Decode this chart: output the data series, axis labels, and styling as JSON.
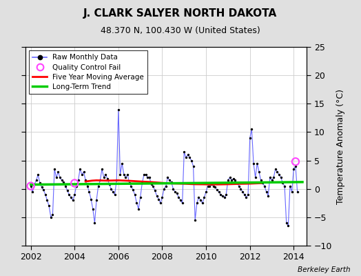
{
  "title": "J. CLARK SALYER NORTH DAKOTA",
  "subtitle": "48.370 N, 100.430 W (United States)",
  "ylabel_right": "Temperature Anomaly (°C)",
  "credit": "Berkeley Earth",
  "ylim": [
    -10,
    25
  ],
  "yticks": [
    -10,
    -5,
    0,
    5,
    10,
    15,
    20,
    25
  ],
  "xlim_start": 2001.75,
  "xlim_end": 2014.6,
  "xticks": [
    2002,
    2004,
    2006,
    2008,
    2010,
    2012,
    2014
  ],
  "bg_color": "#e0e0e0",
  "plot_bg_color": "#ffffff",
  "raw_color": "#6666ff",
  "dot_color": "#000000",
  "ma_color": "#ff0000",
  "trend_color": "#00cc00",
  "qc_color": "#ff44ff",
  "grid_color": "#cccccc",
  "raw_data": [
    [
      2002.0,
      0.5
    ],
    [
      2002.083,
      -0.5
    ],
    [
      2002.167,
      0.8
    ],
    [
      2002.25,
      1.5
    ],
    [
      2002.333,
      2.5
    ],
    [
      2002.417,
      1.0
    ],
    [
      2002.5,
      0.3
    ],
    [
      2002.583,
      -0.2
    ],
    [
      2002.667,
      -1.0
    ],
    [
      2002.75,
      -2.0
    ],
    [
      2002.833,
      -3.0
    ],
    [
      2002.917,
      -5.0
    ],
    [
      2003.0,
      -4.5
    ],
    [
      2003.083,
      3.5
    ],
    [
      2003.167,
      2.0
    ],
    [
      2003.25,
      3.0
    ],
    [
      2003.333,
      2.0
    ],
    [
      2003.417,
      1.5
    ],
    [
      2003.5,
      1.2
    ],
    [
      2003.583,
      0.5
    ],
    [
      2003.667,
      -0.3
    ],
    [
      2003.75,
      -1.0
    ],
    [
      2003.833,
      -1.5
    ],
    [
      2003.917,
      -2.0
    ],
    [
      2004.0,
      -1.0
    ],
    [
      2004.083,
      0.5
    ],
    [
      2004.167,
      1.5
    ],
    [
      2004.25,
      3.5
    ],
    [
      2004.333,
      2.5
    ],
    [
      2004.417,
      3.0
    ],
    [
      2004.5,
      1.5
    ],
    [
      2004.583,
      0.5
    ],
    [
      2004.667,
      -0.5
    ],
    [
      2004.75,
      -1.8
    ],
    [
      2004.833,
      -3.5
    ],
    [
      2004.917,
      -6.0
    ],
    [
      2005.0,
      -2.0
    ],
    [
      2005.083,
      0.5
    ],
    [
      2005.167,
      1.5
    ],
    [
      2005.25,
      3.5
    ],
    [
      2005.333,
      2.0
    ],
    [
      2005.417,
      2.5
    ],
    [
      2005.5,
      1.8
    ],
    [
      2005.583,
      0.8
    ],
    [
      2005.667,
      0.0
    ],
    [
      2005.75,
      -0.5
    ],
    [
      2005.833,
      -1.0
    ],
    [
      2005.917,
      1.5
    ],
    [
      2006.0,
      14.0
    ],
    [
      2006.083,
      2.5
    ],
    [
      2006.167,
      4.5
    ],
    [
      2006.25,
      2.5
    ],
    [
      2006.333,
      2.0
    ],
    [
      2006.417,
      2.5
    ],
    [
      2006.5,
      1.0
    ],
    [
      2006.583,
      0.5
    ],
    [
      2006.667,
      -0.2
    ],
    [
      2006.75,
      -1.0
    ],
    [
      2006.833,
      -2.5
    ],
    [
      2006.917,
      -3.5
    ],
    [
      2007.0,
      -1.5
    ],
    [
      2007.083,
      1.0
    ],
    [
      2007.167,
      2.5
    ],
    [
      2007.25,
      2.5
    ],
    [
      2007.333,
      2.0
    ],
    [
      2007.417,
      2.0
    ],
    [
      2007.5,
      0.8
    ],
    [
      2007.583,
      0.5
    ],
    [
      2007.667,
      -0.3
    ],
    [
      2007.75,
      -1.2
    ],
    [
      2007.833,
      -1.8
    ],
    [
      2007.917,
      -2.5
    ],
    [
      2008.0,
      -1.5
    ],
    [
      2008.083,
      0.0
    ],
    [
      2008.167,
      0.5
    ],
    [
      2008.25,
      2.0
    ],
    [
      2008.333,
      1.5
    ],
    [
      2008.417,
      1.2
    ],
    [
      2008.5,
      0.0
    ],
    [
      2008.583,
      -0.5
    ],
    [
      2008.667,
      -0.8
    ],
    [
      2008.75,
      -1.5
    ],
    [
      2008.833,
      -2.0
    ],
    [
      2008.917,
      -2.5
    ],
    [
      2009.0,
      6.5
    ],
    [
      2009.083,
      5.5
    ],
    [
      2009.167,
      6.0
    ],
    [
      2009.25,
      5.5
    ],
    [
      2009.333,
      5.0
    ],
    [
      2009.417,
      4.0
    ],
    [
      2009.5,
      -5.5
    ],
    [
      2009.583,
      -2.5
    ],
    [
      2009.667,
      -1.5
    ],
    [
      2009.75,
      -2.0
    ],
    [
      2009.833,
      -2.5
    ],
    [
      2009.917,
      -1.5
    ],
    [
      2010.0,
      -0.5
    ],
    [
      2010.083,
      0.5
    ],
    [
      2010.167,
      0.5
    ],
    [
      2010.25,
      0.8
    ],
    [
      2010.333,
      0.5
    ],
    [
      2010.417,
      0.3
    ],
    [
      2010.5,
      -0.2
    ],
    [
      2010.583,
      -0.5
    ],
    [
      2010.667,
      -1.0
    ],
    [
      2010.75,
      -1.2
    ],
    [
      2010.833,
      -1.5
    ],
    [
      2010.917,
      -1.0
    ],
    [
      2011.0,
      1.5
    ],
    [
      2011.083,
      2.0
    ],
    [
      2011.167,
      1.5
    ],
    [
      2011.25,
      1.8
    ],
    [
      2011.333,
      1.5
    ],
    [
      2011.417,
      1.0
    ],
    [
      2011.5,
      0.5
    ],
    [
      2011.583,
      0.0
    ],
    [
      2011.667,
      -0.5
    ],
    [
      2011.75,
      -1.0
    ],
    [
      2011.833,
      -1.5
    ],
    [
      2011.917,
      -1.0
    ],
    [
      2012.0,
      9.0
    ],
    [
      2012.083,
      10.5
    ],
    [
      2012.167,
      4.5
    ],
    [
      2012.25,
      2.0
    ],
    [
      2012.333,
      4.5
    ],
    [
      2012.417,
      3.0
    ],
    [
      2012.5,
      1.5
    ],
    [
      2012.583,
      1.0
    ],
    [
      2012.667,
      0.5
    ],
    [
      2012.75,
      -0.5
    ],
    [
      2012.833,
      -1.2
    ],
    [
      2012.917,
      2.0
    ],
    [
      2013.0,
      1.5
    ],
    [
      2013.083,
      2.0
    ],
    [
      2013.167,
      3.5
    ],
    [
      2013.25,
      3.0
    ],
    [
      2013.333,
      2.5
    ],
    [
      2013.417,
      2.0
    ],
    [
      2013.5,
      1.0
    ],
    [
      2013.583,
      0.5
    ],
    [
      2013.667,
      -6.0
    ],
    [
      2013.75,
      -6.5
    ],
    [
      2013.833,
      0.5
    ],
    [
      2013.917,
      -0.5
    ],
    [
      2014.0,
      3.5
    ],
    [
      2014.083,
      4.0
    ],
    [
      2014.167,
      -0.5
    ]
  ],
  "ma_data": [
    [
      2004.5,
      1.3
    ],
    [
      2004.8,
      1.45
    ],
    [
      2005.0,
      1.5
    ],
    [
      2005.5,
      1.45
    ],
    [
      2006.0,
      1.5
    ],
    [
      2006.5,
      1.42
    ],
    [
      2007.0,
      1.3
    ],
    [
      2007.5,
      1.2
    ],
    [
      2008.0,
      1.05
    ],
    [
      2008.5,
      0.95
    ],
    [
      2009.0,
      0.9
    ],
    [
      2009.5,
      0.82
    ],
    [
      2010.0,
      0.8
    ],
    [
      2010.5,
      0.78
    ],
    [
      2011.0,
      0.82
    ],
    [
      2011.5,
      0.88
    ],
    [
      2012.0,
      0.92
    ],
    [
      2012.5,
      1.0
    ]
  ],
  "trend_data": [
    [
      2002.0,
      0.75
    ],
    [
      2014.4,
      1.2
    ]
  ],
  "qc_fail_points": [
    [
      2002.0,
      0.5
    ],
    [
      2004.0,
      1.0
    ],
    [
      2014.083,
      4.8
    ]
  ]
}
